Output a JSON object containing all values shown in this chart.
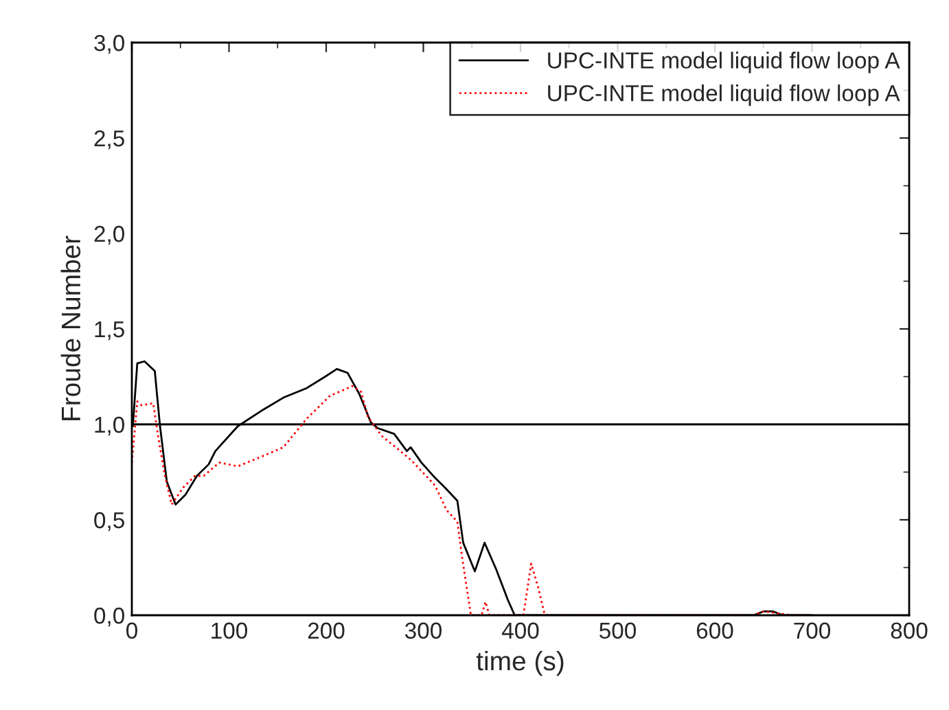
{
  "chart_data": {
    "type": "line",
    "xlabel": "time (s)",
    "ylabel": "Froude Number",
    "xlim": [
      0,
      800
    ],
    "xticks": [
      0,
      100,
      200,
      300,
      400,
      500,
      600,
      700,
      800
    ],
    "ylim": [
      0,
      3.0
    ],
    "yticks": [
      {
        "value": 0,
        "label": "0,0"
      },
      {
        "value": 0.5,
        "label": "0,5"
      },
      {
        "value": 1.0,
        "label": "1,0"
      },
      {
        "value": 1.5,
        "label": "1,5"
      },
      {
        "value": 2.0,
        "label": "2,0"
      },
      {
        "value": 2.5,
        "label": "2,5"
      },
      {
        "value": 3.0,
        "label": "3,0"
      }
    ],
    "grid": false,
    "legend": "top right",
    "ref_lines": [
      {
        "axis": "y",
        "value": 1.0,
        "color": "#000000",
        "line_style": "solid"
      }
    ],
    "series": [
      {
        "name": "UPC-INTE model liquid flow loop A",
        "color": "#000000",
        "line_style": "solid",
        "x": [
          1,
          5.6,
          13,
          23.6,
          29,
          36,
          45,
          55,
          67,
          79,
          86,
          109,
          133,
          156,
          180,
          199,
          211,
          222,
          234,
          246,
          253,
          270,
          283,
          287,
          298,
          312,
          322,
          335,
          341,
          353,
          363,
          375,
          387,
          394,
          640,
          650,
          660,
          670,
          700
        ],
        "values": [
          0.99,
          1.32,
          1.33,
          1.28,
          0.99,
          0.7,
          0.58,
          0.63,
          0.73,
          0.79,
          0.86,
          0.99,
          1.07,
          1.14,
          1.19,
          1.25,
          1.29,
          1.27,
          1.16,
          1.01,
          0.98,
          0.95,
          0.86,
          0.88,
          0.8,
          0.72,
          0.67,
          0.6,
          0.38,
          0.23,
          0.38,
          0.24,
          0.08,
          0,
          0,
          0.02,
          0.02,
          0,
          0
        ]
      },
      {
        "name": "UPC-INTE model liquid flow loop A",
        "color": "#ff0000",
        "line_style": "dotted",
        "x": [
          0,
          5.6,
          10,
          22,
          27,
          34,
          41,
          53,
          65,
          74,
          90,
          109,
          133,
          156,
          180,
          204,
          227,
          236,
          243,
          257,
          274,
          288,
          312,
          324,
          335,
          340,
          349,
          360,
          364,
          368,
          403,
          411,
          418,
          425,
          640,
          650,
          665,
          680,
          700
        ],
        "values": [
          0.8,
          1.12,
          1.1,
          1.11,
          0.94,
          0.73,
          0.58,
          0.67,
          0.73,
          0.73,
          0.8,
          0.78,
          0.83,
          0.88,
          1.03,
          1.15,
          1.2,
          1.17,
          1.04,
          0.94,
          0.87,
          0.81,
          0.68,
          0.55,
          0.49,
          0.3,
          0,
          0,
          0.07,
          0,
          0,
          0.27,
          0.15,
          0,
          0,
          0.02,
          0.01,
          0,
          0
        ]
      }
    ]
  }
}
